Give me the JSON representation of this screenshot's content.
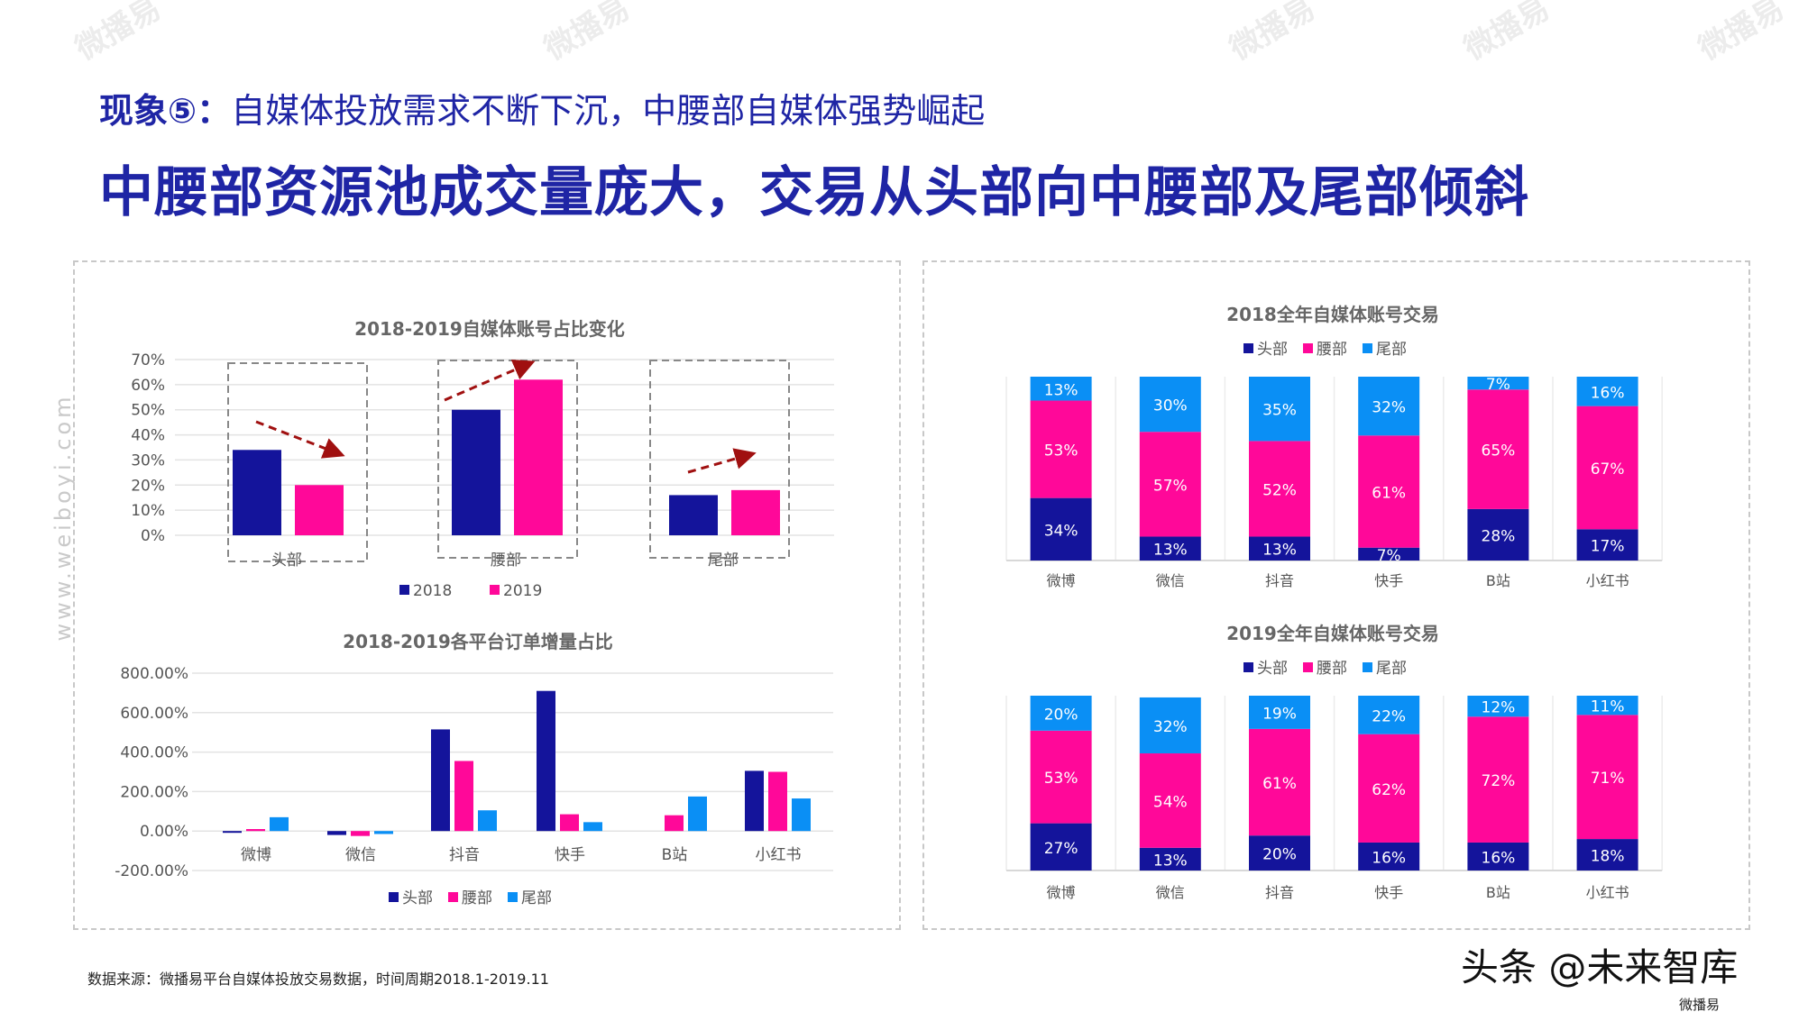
{
  "header": {
    "subtitle_prefix": "现象⑤：",
    "subtitle_text": "自媒体投放需求不断下沉，中腰部自媒体强势崛起",
    "title": "中腰部资源池成交量庞大，交易从头部向中腰部及尾部倾斜"
  },
  "watermark": {
    "vertical_text": "www.weiboyi.com",
    "logo_text": "微播易"
  },
  "footer": {
    "source": "数据来源：微播易平台自媒体投放交易数据，时间周期2018.1-2019.11",
    "credit": "头条 @未来智库",
    "credit_logo": "微播易"
  },
  "colors": {
    "head": "#14149b",
    "waist": "#ff0899",
    "tail": "#0a8ff5",
    "title": "#1f25a5",
    "arrow": "#a01010"
  },
  "chart_data": [
    {
      "type": "bar",
      "title": "2018-2019自媒体账号占比变化",
      "categories": [
        "头部",
        "腰部",
        "尾部"
      ],
      "series": [
        {
          "name": "2018",
          "values": [
            34,
            50,
            16
          ]
        },
        {
          "name": "2019",
          "values": [
            20,
            62,
            18
          ]
        }
      ],
      "ylim": [
        0,
        70
      ],
      "yticks": [
        "0%",
        "10%",
        "20%",
        "30%",
        "40%",
        "50%",
        "60%",
        "70%"
      ],
      "grid": true,
      "legend": "bottom"
    },
    {
      "type": "bar",
      "title": "2018-2019各平台订单增量占比",
      "categories": [
        "微博",
        "微信",
        "抖音",
        "快手",
        "B站",
        "小红书"
      ],
      "series": [
        {
          "name": "头部",
          "values": [
            -5,
            -20,
            515,
            710,
            0,
            305
          ]
        },
        {
          "name": "腰部",
          "values": [
            10,
            -25,
            355,
            85,
            80,
            300
          ]
        },
        {
          "name": "尾部",
          "values": [
            70,
            -15,
            105,
            45,
            175,
            165
          ]
        }
      ],
      "ylim": [
        -200,
        800
      ],
      "yticks": [
        "-200.00%",
        "0.00%",
        "200.00%",
        "400.00%",
        "600.00%",
        "800.00%"
      ],
      "grid": true,
      "legend": "bottom"
    },
    {
      "type": "bar",
      "stacked": true,
      "title": "2018全年自媒体账号交易",
      "categories": [
        "微博",
        "微信",
        "抖音",
        "快手",
        "B站",
        "小红书"
      ],
      "series": [
        {
          "name": "头部",
          "values": [
            34,
            13,
            13,
            7,
            28,
            17
          ]
        },
        {
          "name": "腰部",
          "values": [
            53,
            57,
            52,
            61,
            65,
            67
          ]
        },
        {
          "name": "尾部",
          "values": [
            13,
            30,
            35,
            32,
            7,
            16
          ]
        }
      ],
      "ylim": [
        0,
        100
      ],
      "legend": "top"
    },
    {
      "type": "bar",
      "stacked": true,
      "title": "2019全年自媒体账号交易",
      "categories": [
        "微博",
        "微信",
        "抖音",
        "快手",
        "B站",
        "小红书"
      ],
      "series": [
        {
          "name": "头部",
          "values": [
            27,
            13,
            20,
            16,
            16,
            18
          ]
        },
        {
          "name": "腰部",
          "values": [
            53,
            54,
            61,
            62,
            72,
            71
          ]
        },
        {
          "name": "尾部",
          "values": [
            20,
            32,
            19,
            22,
            12,
            11
          ]
        }
      ],
      "ylim": [
        0,
        100
      ],
      "legend": "top"
    }
  ]
}
